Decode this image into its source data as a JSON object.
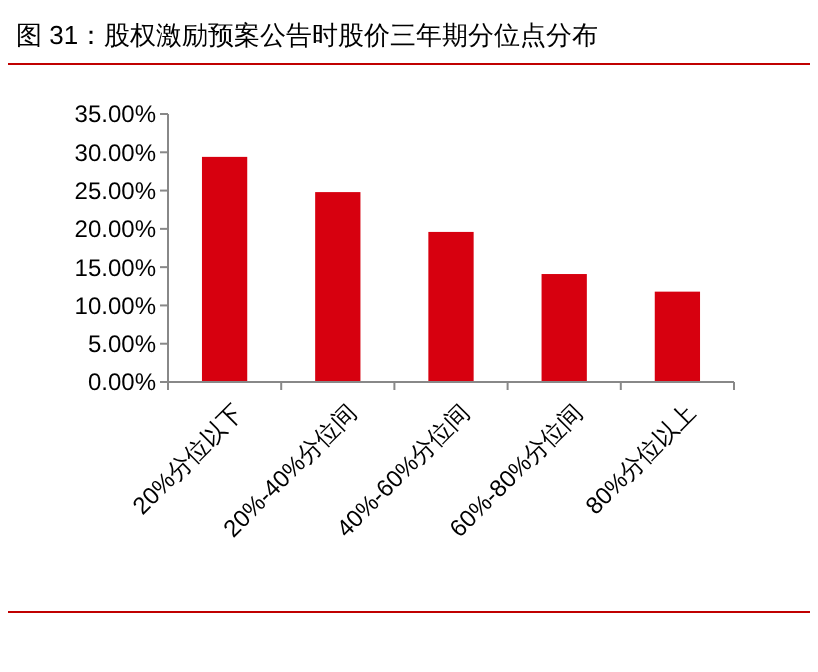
{
  "chart_data": {
    "type": "bar",
    "title": "图 31：股权激励预案公告时股价三年期分位点分布",
    "categories": [
      "20%分位以下",
      "20%-40%分位间",
      "40%-60%分位间",
      "60%-80%分位间",
      "80%分位以上"
    ],
    "values": [
      29.4,
      24.8,
      19.6,
      14.1,
      11.8
    ],
    "color": "#d7000f",
    "ylim": [
      0,
      35
    ],
    "yticks": [
      {
        "value": 0,
        "label": "0.00%"
      },
      {
        "value": 5,
        "label": "5.00%"
      },
      {
        "value": 10,
        "label": "10.00%"
      },
      {
        "value": 15,
        "label": "15.00%"
      },
      {
        "value": 20,
        "label": "20.00%"
      },
      {
        "value": 25,
        "label": "25.00%"
      },
      {
        "value": 30,
        "label": "30.00%"
      },
      {
        "value": 35,
        "label": "35.00%"
      }
    ],
    "grid": false
  }
}
